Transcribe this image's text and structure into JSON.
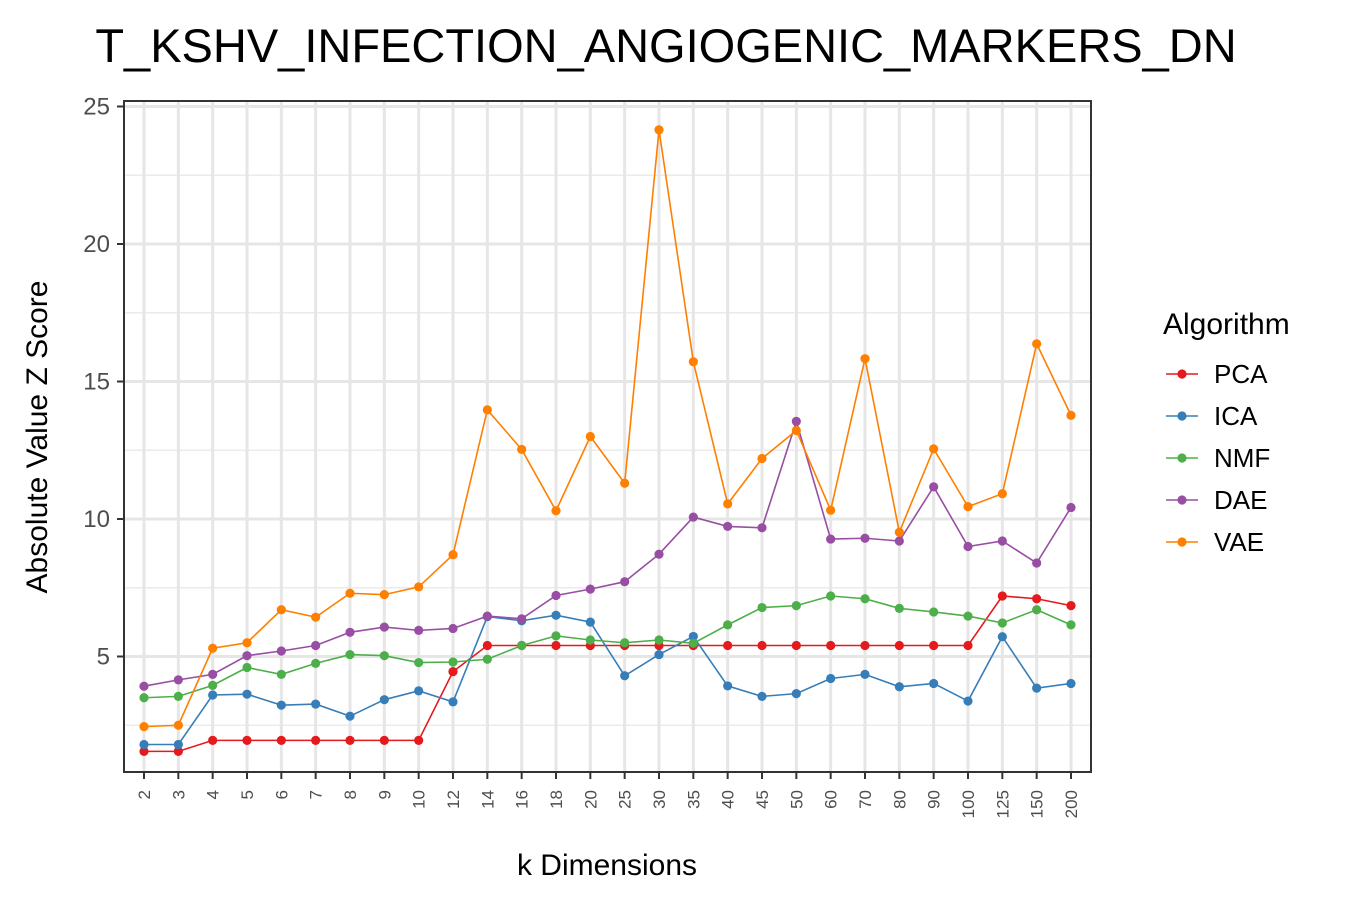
{
  "chart_data": {
    "type": "line",
    "title": "T_KSHV_INFECTION_ANGIOGENIC_MARKERS_DN",
    "xlabel": "k Dimensions",
    "ylabel": "Absolute Value Z Score",
    "x": [
      "2",
      "3",
      "4",
      "5",
      "6",
      "7",
      "8",
      "9",
      "10",
      "12",
      "14",
      "16",
      "18",
      "20",
      "25",
      "30",
      "35",
      "40",
      "45",
      "50",
      "60",
      "70",
      "80",
      "90",
      "100",
      "125",
      "150",
      "200"
    ],
    "ylim": [
      0.8,
      25.2
    ],
    "yticks": [
      5,
      10,
      15,
      20,
      25
    ],
    "ytick_labels": [
      "5",
      "10",
      "15",
      "20",
      "25"
    ],
    "grid": true,
    "legend_title": "Algorithm",
    "legend_position": "right",
    "series": [
      {
        "name": "PCA",
        "color": "#E41A1C",
        "values": [
          1.55,
          1.55,
          1.95,
          1.95,
          1.95,
          1.95,
          1.95,
          1.95,
          1.95,
          4.45,
          5.4,
          5.4,
          5.4,
          5.4,
          5.4,
          5.4,
          5.4,
          5.4,
          5.4,
          5.4,
          5.4,
          5.4,
          5.4,
          5.4,
          5.4,
          7.2,
          7.1,
          6.85
        ]
      },
      {
        "name": "ICA",
        "color": "#377EB8",
        "values": [
          1.8,
          1.8,
          3.6,
          3.63,
          3.23,
          3.27,
          2.83,
          3.43,
          3.75,
          3.35,
          6.45,
          6.3,
          6.5,
          6.25,
          4.3,
          5.07,
          5.73,
          3.93,
          3.55,
          3.65,
          4.2,
          4.35,
          3.9,
          4.02,
          3.38,
          5.72,
          3.85,
          4.02
        ]
      },
      {
        "name": "NMF",
        "color": "#4DAF4A",
        "values": [
          3.5,
          3.55,
          3.95,
          4.6,
          4.35,
          4.75,
          5.07,
          5.03,
          4.78,
          4.8,
          4.9,
          5.4,
          5.75,
          5.6,
          5.5,
          5.6,
          5.48,
          6.15,
          6.78,
          6.85,
          7.2,
          7.1,
          6.75,
          6.62,
          6.47,
          6.22,
          6.7,
          6.15
        ]
      },
      {
        "name": "DAE",
        "color": "#984EA3",
        "values": [
          3.92,
          4.15,
          4.35,
          5.03,
          5.2,
          5.4,
          5.88,
          6.07,
          5.95,
          6.02,
          6.47,
          6.37,
          7.22,
          7.45,
          7.72,
          8.72,
          10.07,
          9.73,
          9.68,
          13.55,
          9.27,
          9.3,
          9.2,
          11.17,
          9.0,
          9.2,
          8.4,
          10.42
        ]
      },
      {
        "name": "VAE",
        "color": "#FF7F00",
        "values": [
          2.45,
          2.5,
          5.3,
          5.5,
          6.7,
          6.43,
          7.3,
          7.25,
          7.53,
          8.7,
          13.97,
          12.53,
          10.3,
          13.0,
          11.3,
          24.15,
          15.72,
          10.55,
          12.2,
          13.22,
          10.32,
          15.83,
          9.52,
          12.55,
          10.45,
          10.92,
          16.37,
          13.77
        ]
      }
    ]
  }
}
